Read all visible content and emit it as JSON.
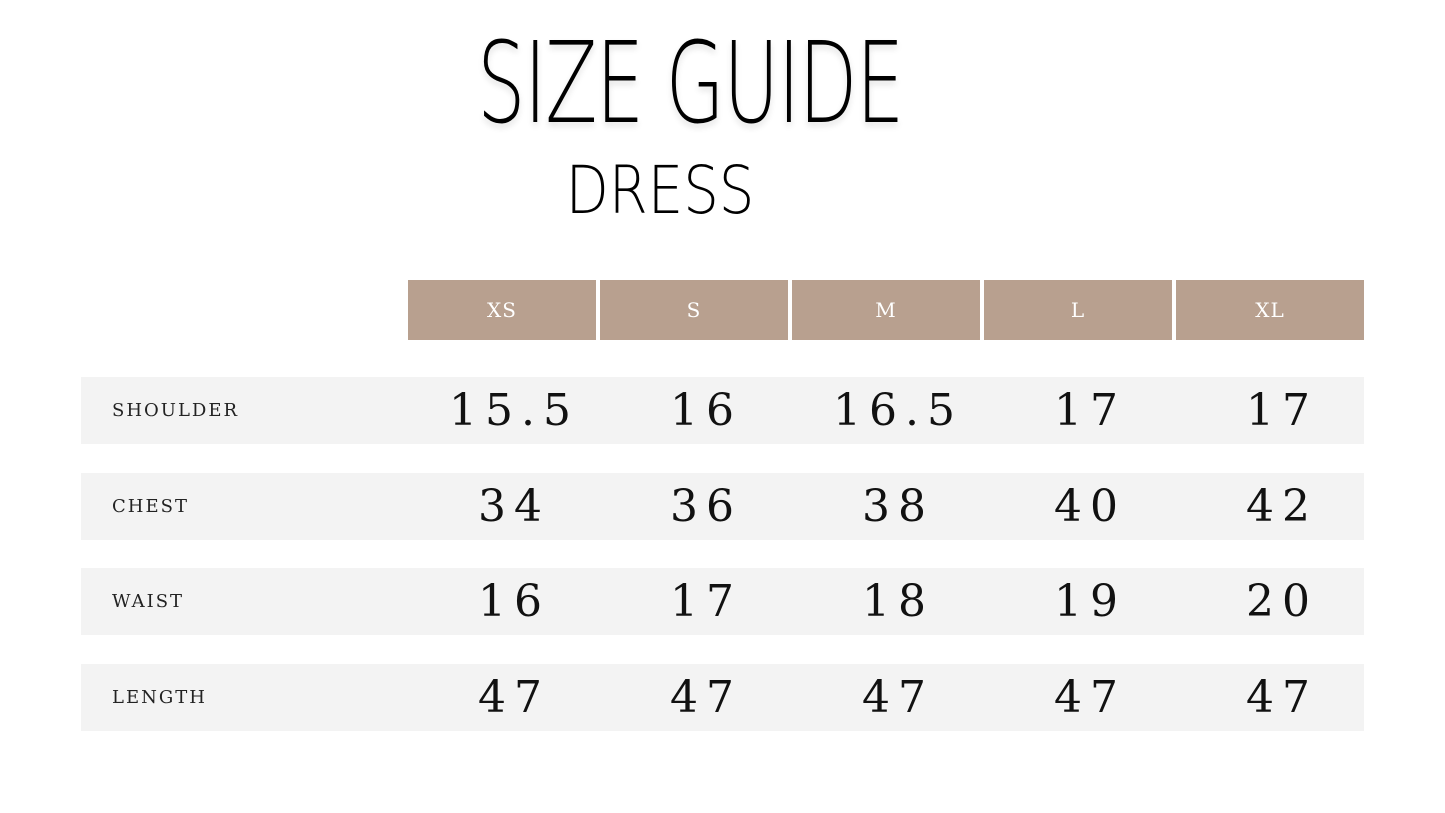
{
  "title": "SIZE GUIDE",
  "subtitle": "DRESS",
  "sizes": [
    "XS",
    "S",
    "M",
    "L",
    "XL"
  ],
  "rows": [
    {
      "label": "SHOULDER",
      "values": [
        "15.5",
        "16",
        "16.5",
        "17",
        "17"
      ]
    },
    {
      "label": "CHEST",
      "values": [
        "34",
        "36",
        "38",
        "40",
        "42"
      ]
    },
    {
      "label": "WAIST",
      "values": [
        "16",
        "17",
        "18",
        "19",
        "20"
      ]
    },
    {
      "label": "LENGTH",
      "values": [
        "47",
        "47",
        "47",
        "47",
        "47"
      ]
    }
  ],
  "colors": {
    "header": "#b8a08f",
    "row": "#f3f3f3"
  }
}
